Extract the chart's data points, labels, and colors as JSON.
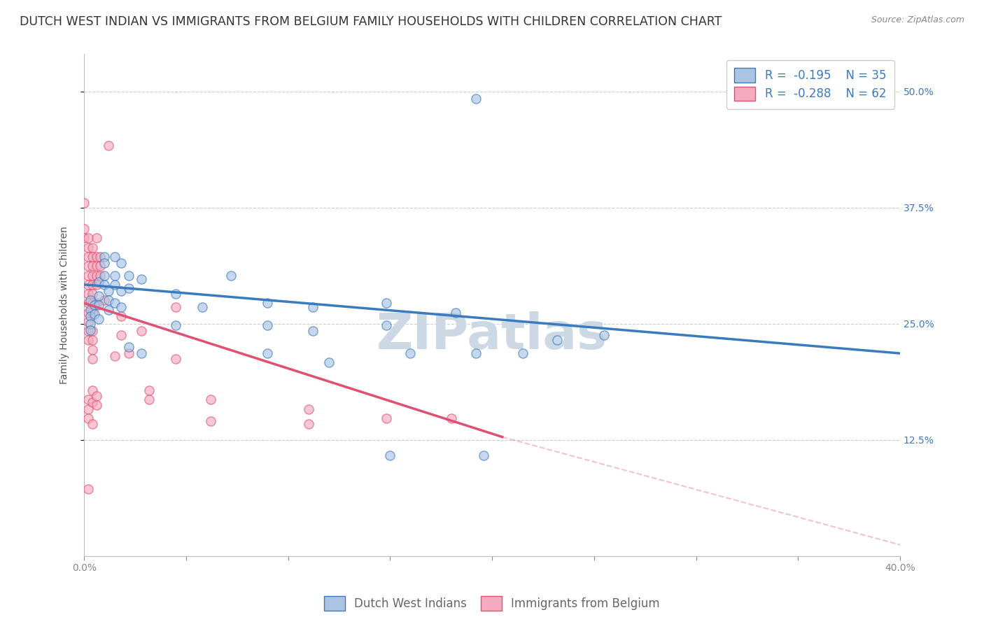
{
  "title": "DUTCH WEST INDIAN VS IMMIGRANTS FROM BELGIUM FAMILY HOUSEHOLDS WITH CHILDREN CORRELATION CHART",
  "source": "Source: ZipAtlas.com",
  "ylabel": "Family Households with Children",
  "watermark": "ZIPatlas",
  "ytick_labels": [
    "12.5%",
    "25.0%",
    "37.5%",
    "50.0%"
  ],
  "ytick_values": [
    0.125,
    0.25,
    0.375,
    0.5
  ],
  "xlim": [
    0.0,
    0.4
  ],
  "ylim": [
    0.0,
    0.54
  ],
  "legend_blue_label": "Dutch West Indians",
  "legend_pink_label": "Immigrants from Belgium",
  "blue_color": "#aac4e2",
  "pink_color": "#f4aabf",
  "blue_line_color": "#3a7abf",
  "pink_line_color": "#e05070",
  "blue_scatter": [
    [
      0.003,
      0.275
    ],
    [
      0.003,
      0.265
    ],
    [
      0.003,
      0.258
    ],
    [
      0.003,
      0.25
    ],
    [
      0.003,
      0.243
    ],
    [
      0.005,
      0.27
    ],
    [
      0.005,
      0.26
    ],
    [
      0.007,
      0.295
    ],
    [
      0.007,
      0.28
    ],
    [
      0.007,
      0.27
    ],
    [
      0.007,
      0.255
    ],
    [
      0.01,
      0.322
    ],
    [
      0.01,
      0.315
    ],
    [
      0.01,
      0.302
    ],
    [
      0.01,
      0.292
    ],
    [
      0.012,
      0.285
    ],
    [
      0.012,
      0.275
    ],
    [
      0.012,
      0.265
    ],
    [
      0.015,
      0.322
    ],
    [
      0.015,
      0.302
    ],
    [
      0.015,
      0.292
    ],
    [
      0.015,
      0.272
    ],
    [
      0.018,
      0.315
    ],
    [
      0.018,
      0.285
    ],
    [
      0.018,
      0.268
    ],
    [
      0.022,
      0.302
    ],
    [
      0.022,
      0.288
    ],
    [
      0.022,
      0.225
    ],
    [
      0.028,
      0.298
    ],
    [
      0.028,
      0.218
    ],
    [
      0.045,
      0.282
    ],
    [
      0.045,
      0.248
    ],
    [
      0.058,
      0.268
    ],
    [
      0.072,
      0.302
    ],
    [
      0.09,
      0.272
    ],
    [
      0.09,
      0.248
    ],
    [
      0.09,
      0.218
    ],
    [
      0.112,
      0.268
    ],
    [
      0.112,
      0.242
    ],
    [
      0.12,
      0.208
    ],
    [
      0.148,
      0.272
    ],
    [
      0.148,
      0.248
    ],
    [
      0.16,
      0.218
    ],
    [
      0.182,
      0.262
    ],
    [
      0.192,
      0.218
    ],
    [
      0.196,
      0.108
    ],
    [
      0.215,
      0.218
    ],
    [
      0.232,
      0.232
    ],
    [
      0.255,
      0.238
    ],
    [
      0.192,
      0.492
    ],
    [
      0.15,
      0.108
    ]
  ],
  "pink_scatter": [
    [
      0.0,
      0.38
    ],
    [
      0.0,
      0.352
    ],
    [
      0.0,
      0.342
    ],
    [
      0.002,
      0.342
    ],
    [
      0.002,
      0.332
    ],
    [
      0.002,
      0.322
    ],
    [
      0.002,
      0.312
    ],
    [
      0.002,
      0.302
    ],
    [
      0.002,
      0.292
    ],
    [
      0.002,
      0.282
    ],
    [
      0.002,
      0.272
    ],
    [
      0.002,
      0.262
    ],
    [
      0.002,
      0.252
    ],
    [
      0.002,
      0.242
    ],
    [
      0.002,
      0.232
    ],
    [
      0.002,
      0.168
    ],
    [
      0.002,
      0.158
    ],
    [
      0.002,
      0.148
    ],
    [
      0.002,
      0.072
    ],
    [
      0.004,
      0.332
    ],
    [
      0.004,
      0.322
    ],
    [
      0.004,
      0.312
    ],
    [
      0.004,
      0.302
    ],
    [
      0.004,
      0.292
    ],
    [
      0.004,
      0.282
    ],
    [
      0.004,
      0.272
    ],
    [
      0.004,
      0.262
    ],
    [
      0.004,
      0.242
    ],
    [
      0.004,
      0.232
    ],
    [
      0.004,
      0.222
    ],
    [
      0.004,
      0.212
    ],
    [
      0.004,
      0.178
    ],
    [
      0.004,
      0.165
    ],
    [
      0.004,
      0.142
    ],
    [
      0.006,
      0.342
    ],
    [
      0.006,
      0.322
    ],
    [
      0.006,
      0.312
    ],
    [
      0.006,
      0.302
    ],
    [
      0.006,
      0.292
    ],
    [
      0.006,
      0.272
    ],
    [
      0.006,
      0.172
    ],
    [
      0.006,
      0.162
    ],
    [
      0.008,
      0.322
    ],
    [
      0.008,
      0.312
    ],
    [
      0.008,
      0.302
    ],
    [
      0.01,
      0.275
    ],
    [
      0.012,
      0.442
    ],
    [
      0.015,
      0.215
    ],
    [
      0.018,
      0.258
    ],
    [
      0.018,
      0.238
    ],
    [
      0.022,
      0.218
    ],
    [
      0.028,
      0.242
    ],
    [
      0.032,
      0.168
    ],
    [
      0.032,
      0.178
    ],
    [
      0.045,
      0.268
    ],
    [
      0.045,
      0.212
    ],
    [
      0.062,
      0.168
    ],
    [
      0.062,
      0.145
    ],
    [
      0.11,
      0.158
    ],
    [
      0.11,
      0.142
    ],
    [
      0.148,
      0.148
    ],
    [
      0.18,
      0.148
    ]
  ],
  "blue_trendline": [
    [
      0.0,
      0.292
    ],
    [
      0.4,
      0.218
    ]
  ],
  "pink_trendline": [
    [
      0.0,
      0.272
    ],
    [
      0.205,
      0.128
    ]
  ],
  "pink_trendline_dashed": [
    [
      0.205,
      0.128
    ],
    [
      0.42,
      0.0
    ]
  ],
  "grid_color": "#cccccc",
  "background_color": "#ffffff",
  "title_fontsize": 12.5,
  "source_fontsize": 9,
  "axis_label_fontsize": 10,
  "tick_label_fontsize": 10,
  "legend_fontsize": 12,
  "watermark_fontsize": 52,
  "watermark_color": "#cdd8e5",
  "scatter_size": 90,
  "scatter_alpha": 0.65,
  "scatter_linewidth": 1.0
}
